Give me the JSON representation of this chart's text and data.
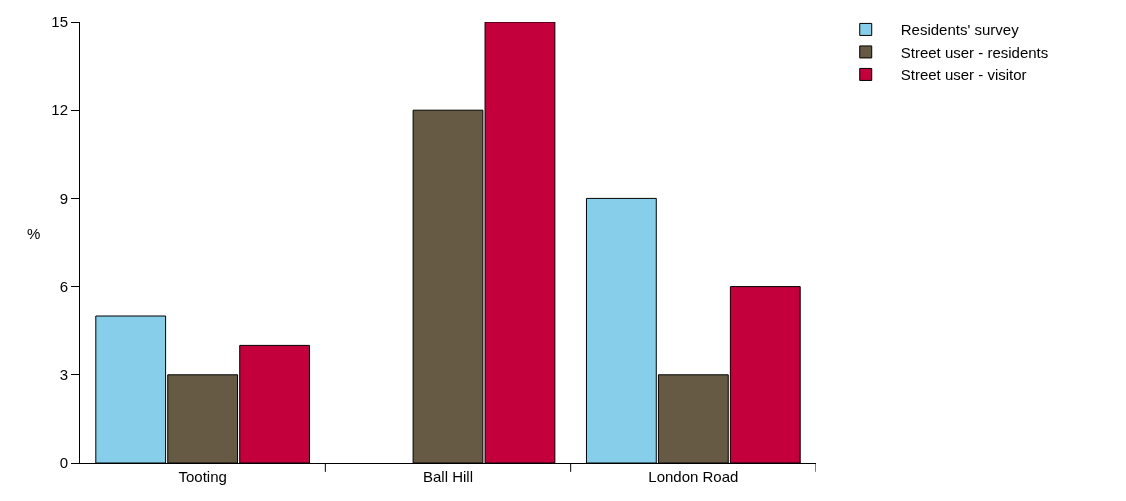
{
  "chart_data": {
    "type": "bar",
    "ylabel": "%",
    "categories": [
      "Tooting",
      "Ball Hill",
      "London Road"
    ],
    "series": [
      {
        "name": "Residents' survey",
        "color": "#87ceeb",
        "values": [
          5,
          null,
          9
        ]
      },
      {
        "name": "Street user - residents",
        "color": "#665a45",
        "values": [
          3,
          12,
          3
        ]
      },
      {
        "name": "Street user - visitor",
        "color": "#c4003c",
        "values": [
          4,
          15,
          6
        ]
      }
    ],
    "ylim": [
      0,
      15
    ],
    "yticks": [
      0,
      3,
      6,
      9,
      12,
      15
    ],
    "grid": false,
    "legend": "top right"
  }
}
